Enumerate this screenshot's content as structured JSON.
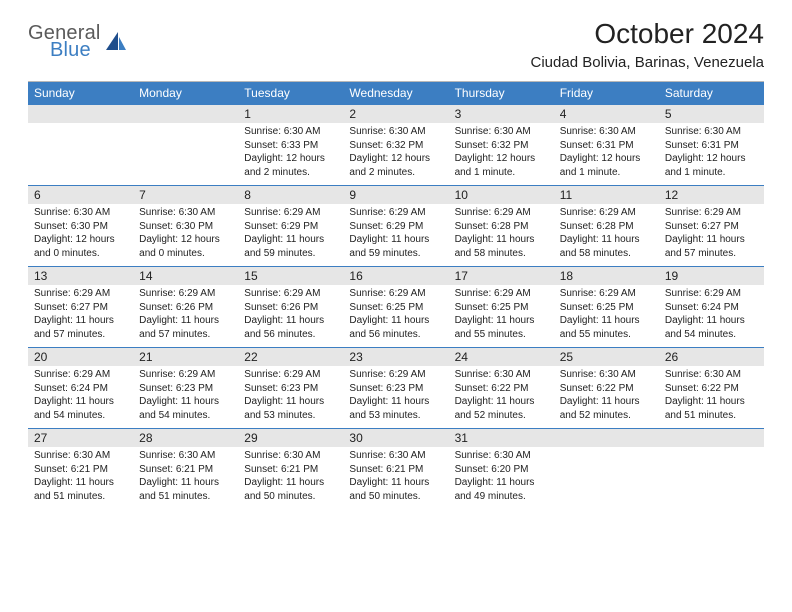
{
  "brand": {
    "line1": "General",
    "line2": "Blue",
    "logo_color": "#3c7ec2",
    "text_color": "#5a5a5a"
  },
  "header": {
    "title": "October 2024",
    "location": "Ciudad Bolivia, Barinas, Venezuela"
  },
  "colors": {
    "header_bg": "#3c7ec2",
    "header_text": "#ffffff",
    "daynum_bg": "#e6e6e6",
    "divider": "#3c7ec2",
    "top_rule": "#b8b8b8",
    "body_text": "#222222"
  },
  "weekdays": [
    "Sunday",
    "Monday",
    "Tuesday",
    "Wednesday",
    "Thursday",
    "Friday",
    "Saturday"
  ],
  "weeks": [
    {
      "days": [
        {
          "num": "",
          "sunrise": "",
          "sunset": "",
          "daylight": ""
        },
        {
          "num": "",
          "sunrise": "",
          "sunset": "",
          "daylight": ""
        },
        {
          "num": "1",
          "sunrise": "Sunrise: 6:30 AM",
          "sunset": "Sunset: 6:33 PM",
          "daylight": "Daylight: 12 hours and 2 minutes."
        },
        {
          "num": "2",
          "sunrise": "Sunrise: 6:30 AM",
          "sunset": "Sunset: 6:32 PM",
          "daylight": "Daylight: 12 hours and 2 minutes."
        },
        {
          "num": "3",
          "sunrise": "Sunrise: 6:30 AM",
          "sunset": "Sunset: 6:32 PM",
          "daylight": "Daylight: 12 hours and 1 minute."
        },
        {
          "num": "4",
          "sunrise": "Sunrise: 6:30 AM",
          "sunset": "Sunset: 6:31 PM",
          "daylight": "Daylight: 12 hours and 1 minute."
        },
        {
          "num": "5",
          "sunrise": "Sunrise: 6:30 AM",
          "sunset": "Sunset: 6:31 PM",
          "daylight": "Daylight: 12 hours and 1 minute."
        }
      ]
    },
    {
      "days": [
        {
          "num": "6",
          "sunrise": "Sunrise: 6:30 AM",
          "sunset": "Sunset: 6:30 PM",
          "daylight": "Daylight: 12 hours and 0 minutes."
        },
        {
          "num": "7",
          "sunrise": "Sunrise: 6:30 AM",
          "sunset": "Sunset: 6:30 PM",
          "daylight": "Daylight: 12 hours and 0 minutes."
        },
        {
          "num": "8",
          "sunrise": "Sunrise: 6:29 AM",
          "sunset": "Sunset: 6:29 PM",
          "daylight": "Daylight: 11 hours and 59 minutes."
        },
        {
          "num": "9",
          "sunrise": "Sunrise: 6:29 AM",
          "sunset": "Sunset: 6:29 PM",
          "daylight": "Daylight: 11 hours and 59 minutes."
        },
        {
          "num": "10",
          "sunrise": "Sunrise: 6:29 AM",
          "sunset": "Sunset: 6:28 PM",
          "daylight": "Daylight: 11 hours and 58 minutes."
        },
        {
          "num": "11",
          "sunrise": "Sunrise: 6:29 AM",
          "sunset": "Sunset: 6:28 PM",
          "daylight": "Daylight: 11 hours and 58 minutes."
        },
        {
          "num": "12",
          "sunrise": "Sunrise: 6:29 AM",
          "sunset": "Sunset: 6:27 PM",
          "daylight": "Daylight: 11 hours and 57 minutes."
        }
      ]
    },
    {
      "days": [
        {
          "num": "13",
          "sunrise": "Sunrise: 6:29 AM",
          "sunset": "Sunset: 6:27 PM",
          "daylight": "Daylight: 11 hours and 57 minutes."
        },
        {
          "num": "14",
          "sunrise": "Sunrise: 6:29 AM",
          "sunset": "Sunset: 6:26 PM",
          "daylight": "Daylight: 11 hours and 57 minutes."
        },
        {
          "num": "15",
          "sunrise": "Sunrise: 6:29 AM",
          "sunset": "Sunset: 6:26 PM",
          "daylight": "Daylight: 11 hours and 56 minutes."
        },
        {
          "num": "16",
          "sunrise": "Sunrise: 6:29 AM",
          "sunset": "Sunset: 6:25 PM",
          "daylight": "Daylight: 11 hours and 56 minutes."
        },
        {
          "num": "17",
          "sunrise": "Sunrise: 6:29 AM",
          "sunset": "Sunset: 6:25 PM",
          "daylight": "Daylight: 11 hours and 55 minutes."
        },
        {
          "num": "18",
          "sunrise": "Sunrise: 6:29 AM",
          "sunset": "Sunset: 6:25 PM",
          "daylight": "Daylight: 11 hours and 55 minutes."
        },
        {
          "num": "19",
          "sunrise": "Sunrise: 6:29 AM",
          "sunset": "Sunset: 6:24 PM",
          "daylight": "Daylight: 11 hours and 54 minutes."
        }
      ]
    },
    {
      "days": [
        {
          "num": "20",
          "sunrise": "Sunrise: 6:29 AM",
          "sunset": "Sunset: 6:24 PM",
          "daylight": "Daylight: 11 hours and 54 minutes."
        },
        {
          "num": "21",
          "sunrise": "Sunrise: 6:29 AM",
          "sunset": "Sunset: 6:23 PM",
          "daylight": "Daylight: 11 hours and 54 minutes."
        },
        {
          "num": "22",
          "sunrise": "Sunrise: 6:29 AM",
          "sunset": "Sunset: 6:23 PM",
          "daylight": "Daylight: 11 hours and 53 minutes."
        },
        {
          "num": "23",
          "sunrise": "Sunrise: 6:29 AM",
          "sunset": "Sunset: 6:23 PM",
          "daylight": "Daylight: 11 hours and 53 minutes."
        },
        {
          "num": "24",
          "sunrise": "Sunrise: 6:30 AM",
          "sunset": "Sunset: 6:22 PM",
          "daylight": "Daylight: 11 hours and 52 minutes."
        },
        {
          "num": "25",
          "sunrise": "Sunrise: 6:30 AM",
          "sunset": "Sunset: 6:22 PM",
          "daylight": "Daylight: 11 hours and 52 minutes."
        },
        {
          "num": "26",
          "sunrise": "Sunrise: 6:30 AM",
          "sunset": "Sunset: 6:22 PM",
          "daylight": "Daylight: 11 hours and 51 minutes."
        }
      ]
    },
    {
      "days": [
        {
          "num": "27",
          "sunrise": "Sunrise: 6:30 AM",
          "sunset": "Sunset: 6:21 PM",
          "daylight": "Daylight: 11 hours and 51 minutes."
        },
        {
          "num": "28",
          "sunrise": "Sunrise: 6:30 AM",
          "sunset": "Sunset: 6:21 PM",
          "daylight": "Daylight: 11 hours and 51 minutes."
        },
        {
          "num": "29",
          "sunrise": "Sunrise: 6:30 AM",
          "sunset": "Sunset: 6:21 PM",
          "daylight": "Daylight: 11 hours and 50 minutes."
        },
        {
          "num": "30",
          "sunrise": "Sunrise: 6:30 AM",
          "sunset": "Sunset: 6:21 PM",
          "daylight": "Daylight: 11 hours and 50 minutes."
        },
        {
          "num": "31",
          "sunrise": "Sunrise: 6:30 AM",
          "sunset": "Sunset: 6:20 PM",
          "daylight": "Daylight: 11 hours and 49 minutes."
        },
        {
          "num": "",
          "sunrise": "",
          "sunset": "",
          "daylight": ""
        },
        {
          "num": "",
          "sunrise": "",
          "sunset": "",
          "daylight": ""
        }
      ]
    }
  ]
}
